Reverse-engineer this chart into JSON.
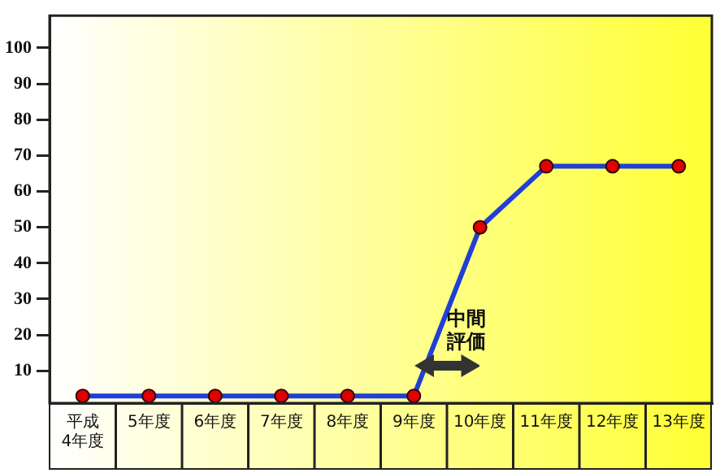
{
  "chart_data": {
    "type": "line",
    "categories": [
      "平成\n4年度",
      "5年度",
      "6年度",
      "7年度",
      "8年度",
      "9年度",
      "10年度",
      "11年度",
      "12年度",
      "13年度"
    ],
    "series": [
      {
        "color": "#1f3fd6",
        "values": [
          3,
          3,
          3,
          3,
          3,
          3,
          50,
          67,
          67,
          67
        ]
      }
    ],
    "ylim": [
      1,
      109
    ],
    "yticks": [
      10,
      20,
      30,
      40,
      50,
      60,
      70,
      80,
      90,
      100
    ],
    "grid": false,
    "legend": false,
    "marker": "circle",
    "line_style": "solid",
    "annotations": [
      "中間評価"
    ]
  }
}
